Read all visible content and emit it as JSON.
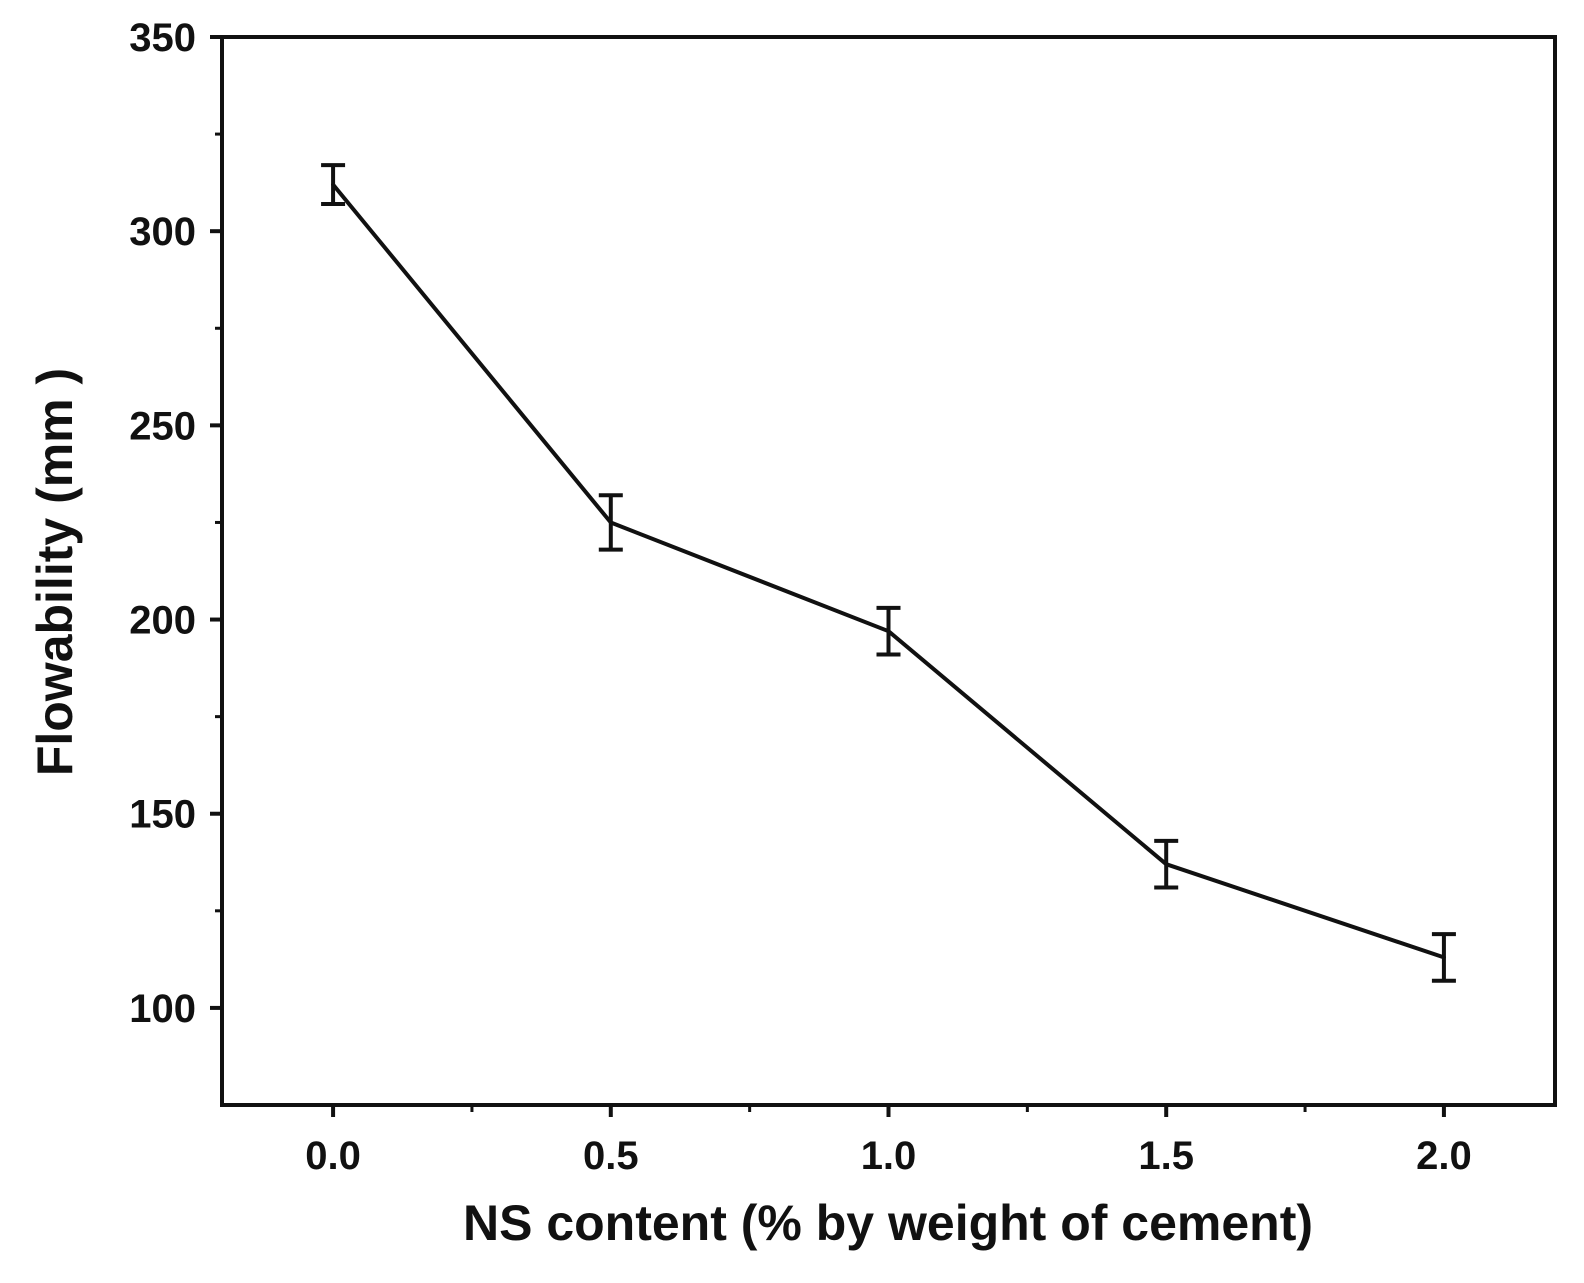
{
  "colors": {
    "line": "#111111",
    "axis": "#111111",
    "background": "#ffffff"
  },
  "chart_data": {
    "type": "line",
    "title": "",
    "xlabel": "NS content (% by weight of cement)",
    "ylabel": "Flowability (mm )",
    "xlim": [
      -0.2,
      2.2
    ],
    "ylim": [
      75,
      350
    ],
    "x_ticks": [
      0.0,
      0.5,
      1.0,
      1.5,
      2.0
    ],
    "x_tick_labels": [
      "0.0",
      "0.5",
      "1.0",
      "1.5",
      "2.0"
    ],
    "y_ticks": [
      100,
      150,
      200,
      250,
      300,
      350
    ],
    "y_tick_labels": [
      "100",
      "150",
      "200",
      "250",
      "300",
      "350"
    ],
    "x_minor_ticks": [
      0.25,
      0.75,
      1.25,
      1.75
    ],
    "y_minor_ticks": [
      125,
      175,
      225,
      275,
      325
    ],
    "grid": false,
    "legend": "none",
    "series": [
      {
        "name": "Flowability",
        "x": [
          0.0,
          0.5,
          1.0,
          1.5,
          2.0
        ],
        "y": [
          312,
          225,
          197,
          137,
          113
        ],
        "error": [
          5,
          7,
          6,
          6,
          6
        ]
      }
    ]
  }
}
